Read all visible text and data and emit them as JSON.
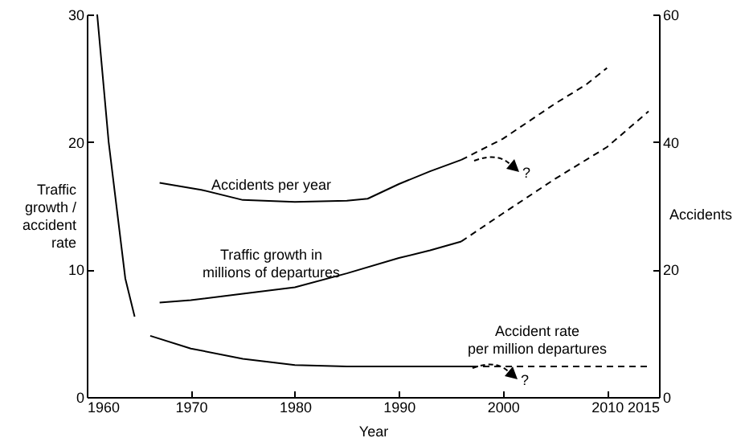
{
  "chart_data": {
    "type": "line",
    "xlabel": "Year",
    "ylabel": "Traffic growth / accident rate",
    "y2label": "Accidents",
    "xlim": [
      1960,
      2015
    ],
    "xticks": [
      1960,
      1970,
      1980,
      1990,
      2000,
      2010,
      2015
    ],
    "ylim": [
      0,
      30
    ],
    "yticks": [
      0,
      10,
      20,
      30
    ],
    "y2lim": [
      0,
      60
    ],
    "y2ticks": [
      0,
      20,
      40,
      60
    ],
    "series": [
      {
        "name": "Accidents per year",
        "axis": "y2",
        "color": "#000000",
        "line_style": "solid",
        "x": [
          1967,
          1971,
          1975,
          1980,
          1985,
          1987,
          1990,
          1993,
          1996
        ],
        "values": [
          33.6,
          32.5,
          30.9,
          30.6,
          30.8,
          31.1,
          33.4,
          35.4,
          37.2
        ]
      },
      {
        "axis": "y2",
        "color": "#000000",
        "line_style": "dashed",
        "x": [
          1996,
          2000,
          2005,
          2008,
          2010
        ],
        "values": [
          37.2,
          40.5,
          46,
          49,
          51.6
        ]
      },
      {
        "name": "Traffic growth in millions of departures",
        "color": "#000000",
        "line_style": "solid",
        "x": [
          1967,
          1970,
          1975,
          1980,
          1985,
          1990,
          1993,
          1996
        ],
        "values": [
          7.4,
          7.6,
          8.1,
          8.6,
          9.7,
          10.9,
          11.5,
          12.2
        ]
      },
      {
        "color": "#000000",
        "line_style": "dashed",
        "x": [
          1996,
          2000,
          2005,
          2010,
          2014
        ],
        "values": [
          12.2,
          14.4,
          17.1,
          19.6,
          22.4
        ]
      },
      {
        "color": "#000000",
        "line_style": "solid",
        "x": [
          1961,
          1962.1,
          1963.7,
          1964.6,
          1965.3,
          1966.1,
          1970,
          1975,
          1980,
          1985,
          1990,
          1997
        ],
        "values": [
          30,
          20,
          9.3,
          6.3,
          null,
          4.8,
          3.8,
          3.0,
          2.5,
          2.4,
          2.4,
          2.4
        ]
      },
      {
        "name": "Accident rate per million departures",
        "color": "#000000",
        "line_style": "dashed",
        "x": [
          1997,
          2014
        ],
        "values": [
          2.4,
          2.4
        ]
      }
    ],
    "annotations": [
      "?",
      "?"
    ]
  }
}
